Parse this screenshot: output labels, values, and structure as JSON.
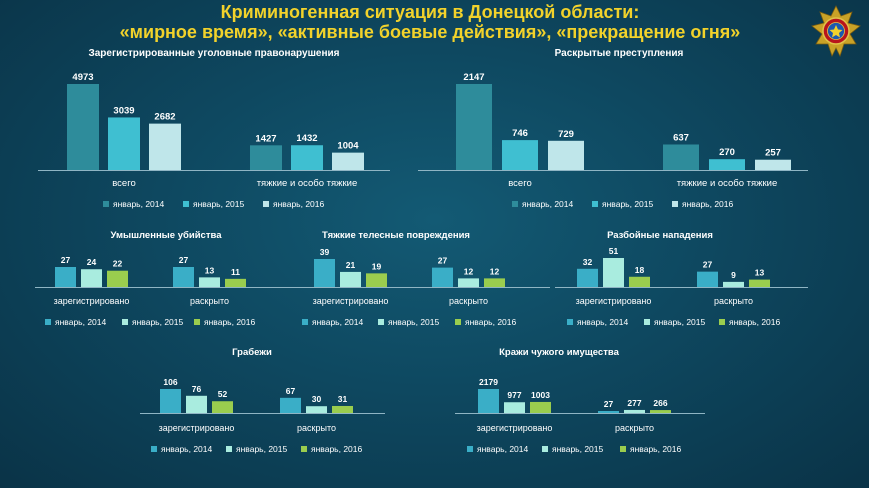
{
  "header": {
    "title_line1": "Криминогенная ситуация  в Донецкой области:",
    "title_line2": "«мирное время», «активные боевые действия», «прекращение огня»"
  },
  "colors": {
    "series": [
      "#2e8c9b",
      "#3fbfd1",
      "#bfe6ea"
    ],
    "series_small": [
      "#3aaec7",
      "#a9ecdf",
      "#9acd4e"
    ]
  },
  "chart_data": [
    {
      "id": "registered-crimes",
      "type": "bar",
      "title": "Зарегистрированные уголовные правонарушения",
      "categories": [
        "всего",
        "тяжкие и особо тяжкие"
      ],
      "series": [
        {
          "name": "январь, 2014",
          "values": [
            4973,
            1427
          ]
        },
        {
          "name": "январь, 2015",
          "values": [
            3039,
            1432
          ]
        },
        {
          "name": "январь, 2016",
          "values": [
            2682,
            1004
          ]
        }
      ],
      "legend": "bottom"
    },
    {
      "id": "solved-crimes",
      "type": "bar",
      "title": "Раскрытые преступления",
      "categories": [
        "всего",
        "тяжкие и особо тяжкие"
      ],
      "series": [
        {
          "name": "январь, 2014",
          "values": [
            2147,
            637
          ]
        },
        {
          "name": "январь, 2015",
          "values": [
            746,
            270
          ]
        },
        {
          "name": "январь, 2016",
          "values": [
            729,
            257
          ]
        }
      ],
      "legend": "bottom"
    },
    {
      "id": "murders",
      "type": "bar",
      "title": "Умышленные убийства",
      "categories": [
        "зарегистрировано",
        "раскрыто"
      ],
      "series": [
        {
          "name": "январь, 2014",
          "values": [
            27,
            27
          ]
        },
        {
          "name": "январь, 2015",
          "values": [
            24,
            13
          ]
        },
        {
          "name": "январь, 2016",
          "values": [
            22,
            11
          ]
        }
      ],
      "legend": "bottom"
    },
    {
      "id": "grievous-injuries",
      "type": "bar",
      "title": "Тяжкие телесные повреждения",
      "categories": [
        "зарегистрировано",
        "раскрыто"
      ],
      "series": [
        {
          "name": "январь, 2014",
          "values": [
            39,
            27
          ]
        },
        {
          "name": "январь, 2015",
          "values": [
            21,
            12
          ]
        },
        {
          "name": "январь, 2016",
          "values": [
            19,
            12
          ]
        }
      ],
      "legend": "bottom"
    },
    {
      "id": "robberies",
      "type": "bar",
      "title": "Разбойные нападения",
      "categories": [
        "зарегистрировано",
        "раскрыто"
      ],
      "series": [
        {
          "name": "январь, 2014",
          "values": [
            32,
            27
          ]
        },
        {
          "name": "январь, 2015",
          "values": [
            51,
            9
          ]
        },
        {
          "name": "январь, 2016",
          "values": [
            18,
            13
          ]
        }
      ],
      "legend": "bottom"
    },
    {
      "id": "thefts-open",
      "type": "bar",
      "title": "Грабежи",
      "categories": [
        "зарегистрировано",
        "раскрыто"
      ],
      "series": [
        {
          "name": "январь, 2014",
          "values": [
            106,
            67
          ]
        },
        {
          "name": "январь, 2015",
          "values": [
            76,
            30
          ]
        },
        {
          "name": "январь, 2016",
          "values": [
            52,
            31
          ]
        }
      ],
      "legend": "bottom"
    },
    {
      "id": "thefts-property",
      "type": "bar",
      "title": "Кражи чужого имущества",
      "categories": [
        "зарегистрировано",
        "раскрыто"
      ],
      "series": [
        {
          "name": "январь, 2014",
          "values": [
            2179,
            27
          ]
        },
        {
          "name": "январь, 2015",
          "values": [
            977,
            277
          ]
        },
        {
          "name": "январь, 2016",
          "values": [
            1003,
            266
          ]
        }
      ],
      "legend": "bottom"
    }
  ]
}
